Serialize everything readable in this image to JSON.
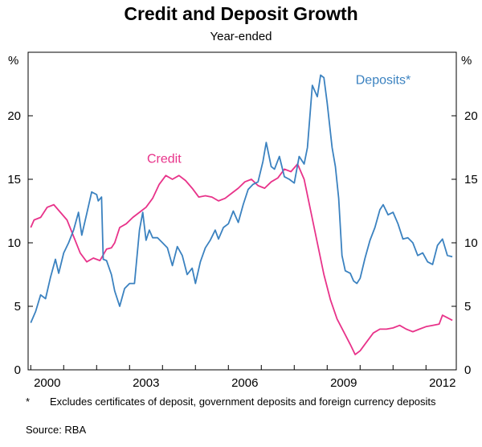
{
  "chart_data": {
    "type": "line",
    "title": "Credit and Deposit Growth",
    "subtitle": "Year-ended",
    "y_unit_label": "%",
    "ylim": [
      0,
      25
    ],
    "yticks": [
      0,
      5,
      10,
      15,
      20
    ],
    "xlim": [
      1999.92,
      2012.92
    ],
    "xticks": [
      {
        "value": 2000.5,
        "label": "2000"
      },
      {
        "value": 2003.5,
        "label": "2003"
      },
      {
        "value": 2006.5,
        "label": "2006"
      },
      {
        "value": 2009.5,
        "label": "2009"
      },
      {
        "value": 2012.5,
        "label": "2012"
      }
    ],
    "series": [
      {
        "name": "Credit",
        "label": "Credit",
        "color": "#e8338a",
        "points": [
          [
            2000.0,
            11.2
          ],
          [
            2000.1,
            11.8
          ],
          [
            2000.3,
            12.0
          ],
          [
            2000.5,
            12.8
          ],
          [
            2000.7,
            13.0
          ],
          [
            2000.9,
            12.4
          ],
          [
            2001.1,
            11.8
          ],
          [
            2001.3,
            10.5
          ],
          [
            2001.5,
            9.2
          ],
          [
            2001.7,
            8.5
          ],
          [
            2001.9,
            8.8
          ],
          [
            2002.1,
            8.6
          ],
          [
            2002.3,
            9.5
          ],
          [
            2002.45,
            9.6
          ],
          [
            2002.55,
            10.0
          ],
          [
            2002.7,
            11.2
          ],
          [
            2002.9,
            11.5
          ],
          [
            2003.1,
            12.0
          ],
          [
            2003.3,
            12.4
          ],
          [
            2003.5,
            12.8
          ],
          [
            2003.7,
            13.5
          ],
          [
            2003.9,
            14.6
          ],
          [
            2004.1,
            15.3
          ],
          [
            2004.3,
            15.0
          ],
          [
            2004.5,
            15.3
          ],
          [
            2004.7,
            14.9
          ],
          [
            2004.9,
            14.3
          ],
          [
            2005.1,
            13.6
          ],
          [
            2005.3,
            13.7
          ],
          [
            2005.5,
            13.6
          ],
          [
            2005.7,
            13.3
          ],
          [
            2005.9,
            13.5
          ],
          [
            2006.1,
            13.9
          ],
          [
            2006.3,
            14.3
          ],
          [
            2006.5,
            14.8
          ],
          [
            2006.7,
            15.0
          ],
          [
            2006.9,
            14.5
          ],
          [
            2007.1,
            14.3
          ],
          [
            2007.3,
            14.8
          ],
          [
            2007.5,
            15.1
          ],
          [
            2007.7,
            15.8
          ],
          [
            2007.9,
            15.6
          ],
          [
            2008.1,
            16.2
          ],
          [
            2008.3,
            15.0
          ],
          [
            2008.5,
            12.5
          ],
          [
            2008.7,
            10.0
          ],
          [
            2008.9,
            7.5
          ],
          [
            2009.1,
            5.5
          ],
          [
            2009.3,
            4.0
          ],
          [
            2009.5,
            3.0
          ],
          [
            2009.7,
            2.0
          ],
          [
            2009.85,
            1.2
          ],
          [
            2010.0,
            1.5
          ],
          [
            2010.2,
            2.2
          ],
          [
            2010.4,
            2.9
          ],
          [
            2010.6,
            3.2
          ],
          [
            2010.8,
            3.2
          ],
          [
            2011.0,
            3.3
          ],
          [
            2011.2,
            3.5
          ],
          [
            2011.4,
            3.2
          ],
          [
            2011.6,
            3.0
          ],
          [
            2011.8,
            3.2
          ],
          [
            2012.0,
            3.4
          ],
          [
            2012.2,
            3.5
          ],
          [
            2012.4,
            3.6
          ],
          [
            2012.5,
            4.3
          ],
          [
            2012.65,
            4.1
          ],
          [
            2012.8,
            3.9
          ]
        ]
      },
      {
        "name": "Deposits*",
        "label": "Deposits*",
        "color": "#3b82c0",
        "points": [
          [
            2000.0,
            3.7
          ],
          [
            2000.15,
            4.6
          ],
          [
            2000.3,
            5.9
          ],
          [
            2000.45,
            5.6
          ],
          [
            2000.6,
            7.3
          ],
          [
            2000.75,
            8.7
          ],
          [
            2000.85,
            7.6
          ],
          [
            2001.0,
            9.2
          ],
          [
            2001.15,
            10.0
          ],
          [
            2001.3,
            11.0
          ],
          [
            2001.45,
            12.4
          ],
          [
            2001.55,
            10.6
          ],
          [
            2001.7,
            12.3
          ],
          [
            2001.85,
            14.0
          ],
          [
            2002.0,
            13.8
          ],
          [
            2002.05,
            13.3
          ],
          [
            2002.15,
            13.6
          ],
          [
            2002.2,
            8.7
          ],
          [
            2002.3,
            8.6
          ],
          [
            2002.45,
            7.5
          ],
          [
            2002.55,
            6.2
          ],
          [
            2002.7,
            5.0
          ],
          [
            2002.85,
            6.4
          ],
          [
            2003.0,
            6.8
          ],
          [
            2003.15,
            6.8
          ],
          [
            2003.3,
            11.0
          ],
          [
            2003.4,
            12.4
          ],
          [
            2003.5,
            10.2
          ],
          [
            2003.6,
            11.0
          ],
          [
            2003.7,
            10.4
          ],
          [
            2003.85,
            10.4
          ],
          [
            2004.0,
            10.0
          ],
          [
            2004.15,
            9.6
          ],
          [
            2004.3,
            8.2
          ],
          [
            2004.45,
            9.7
          ],
          [
            2004.6,
            9.0
          ],
          [
            2004.75,
            7.5
          ],
          [
            2004.9,
            8.0
          ],
          [
            2005.0,
            6.8
          ],
          [
            2005.15,
            8.5
          ],
          [
            2005.3,
            9.6
          ],
          [
            2005.45,
            10.2
          ],
          [
            2005.6,
            11.0
          ],
          [
            2005.7,
            10.3
          ],
          [
            2005.85,
            11.2
          ],
          [
            2006.0,
            11.5
          ],
          [
            2006.15,
            12.5
          ],
          [
            2006.3,
            11.6
          ],
          [
            2006.45,
            13.0
          ],
          [
            2006.6,
            14.2
          ],
          [
            2006.75,
            14.6
          ],
          [
            2006.9,
            14.8
          ],
          [
            2007.05,
            16.4
          ],
          [
            2007.15,
            17.9
          ],
          [
            2007.3,
            16.0
          ],
          [
            2007.4,
            15.8
          ],
          [
            2007.55,
            16.8
          ],
          [
            2007.7,
            15.2
          ],
          [
            2007.85,
            15.0
          ],
          [
            2008.0,
            14.7
          ],
          [
            2008.15,
            16.8
          ],
          [
            2008.3,
            16.2
          ],
          [
            2008.4,
            17.5
          ],
          [
            2008.55,
            22.4
          ],
          [
            2008.7,
            21.5
          ],
          [
            2008.8,
            23.2
          ],
          [
            2008.9,
            23.0
          ],
          [
            2009.0,
            21.0
          ],
          [
            2009.15,
            17.5
          ],
          [
            2009.25,
            16.0
          ],
          [
            2009.35,
            13.5
          ],
          [
            2009.45,
            9.0
          ],
          [
            2009.55,
            7.8
          ],
          [
            2009.7,
            7.6
          ],
          [
            2009.8,
            7.0
          ],
          [
            2009.9,
            6.8
          ],
          [
            2010.0,
            7.2
          ],
          [
            2010.15,
            8.8
          ],
          [
            2010.3,
            10.2
          ],
          [
            2010.45,
            11.2
          ],
          [
            2010.6,
            12.6
          ],
          [
            2010.7,
            13.0
          ],
          [
            2010.85,
            12.2
          ],
          [
            2011.0,
            12.4
          ],
          [
            2011.15,
            11.5
          ],
          [
            2011.3,
            10.3
          ],
          [
            2011.45,
            10.4
          ],
          [
            2011.6,
            10.0
          ],
          [
            2011.75,
            9.0
          ],
          [
            2011.9,
            9.2
          ],
          [
            2012.05,
            8.5
          ],
          [
            2012.2,
            8.3
          ],
          [
            2012.35,
            9.8
          ],
          [
            2012.5,
            10.3
          ],
          [
            2012.65,
            9.0
          ],
          [
            2012.8,
            8.9
          ]
        ]
      }
    ]
  },
  "footnote": {
    "marker": "*",
    "text": "Excludes certificates of deposit, government deposits and foreign currency deposits"
  },
  "source": "Source: RBA"
}
